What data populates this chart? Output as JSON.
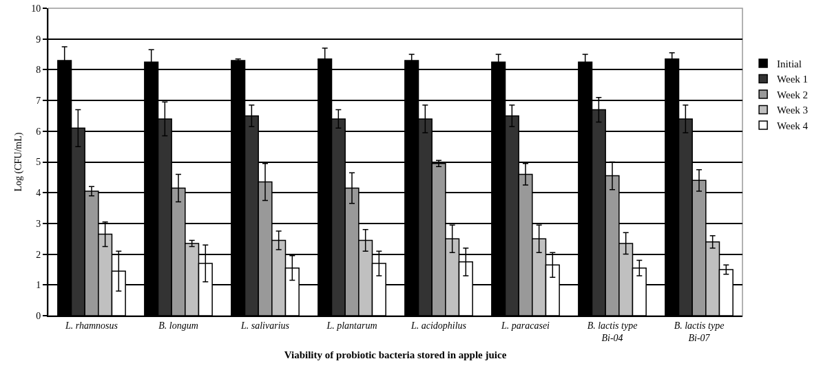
{
  "chart_data": {
    "type": "bar",
    "xlabel": "Viability of probiotic bacteria stored in apple juice",
    "ylabel": "Log (CFU/mL)",
    "categories": [
      "L. rhamnosus",
      "B. longum",
      "L. salivarius",
      "L. plantarum",
      "L. acidophilus",
      "L. paracasei",
      "B. lactis type\nBi-04",
      "B. lactis type\nBi-07"
    ],
    "series": [
      {
        "name": "Initial",
        "color": "#000000",
        "values": [
          8.3,
          8.25,
          8.3,
          8.35,
          8.3,
          8.25,
          8.25,
          8.35
        ],
        "errors": [
          0.45,
          0.4,
          0.05,
          0.35,
          0.2,
          0.25,
          0.25,
          0.2
        ]
      },
      {
        "name": "Week 1",
        "color": "#333333",
        "values": [
          6.1,
          6.4,
          6.5,
          6.4,
          6.4,
          6.5,
          6.7,
          6.4
        ],
        "errors": [
          0.6,
          0.55,
          0.35,
          0.3,
          0.45,
          0.35,
          0.4,
          0.45
        ]
      },
      {
        "name": "Week 2",
        "color": "#999999",
        "values": [
          4.05,
          4.15,
          4.35,
          4.15,
          4.95,
          4.6,
          4.55,
          4.4
        ],
        "errors": [
          0.15,
          0.45,
          0.6,
          0.5,
          0.1,
          0.35,
          0.45,
          0.35
        ]
      },
      {
        "name": "Week 3",
        "color": "#c0c0c0",
        "values": [
          2.65,
          2.35,
          2.45,
          2.45,
          2.5,
          2.5,
          2.35,
          2.4
        ],
        "errors": [
          0.4,
          0.1,
          0.3,
          0.35,
          0.45,
          0.45,
          0.35,
          0.2
        ]
      },
      {
        "name": "Week 4",
        "color": "#ffffff",
        "values": [
          1.45,
          1.7,
          1.55,
          1.7,
          1.75,
          1.65,
          1.55,
          1.5
        ],
        "errors": [
          0.65,
          0.6,
          0.4,
          0.4,
          0.45,
          0.4,
          0.25,
          0.15
        ]
      }
    ],
    "ylim": [
      0,
      10
    ],
    "yticks": [
      0,
      1,
      2,
      3,
      4,
      5,
      6,
      7,
      8,
      9,
      10
    ],
    "grid": "y",
    "legend": "right"
  }
}
